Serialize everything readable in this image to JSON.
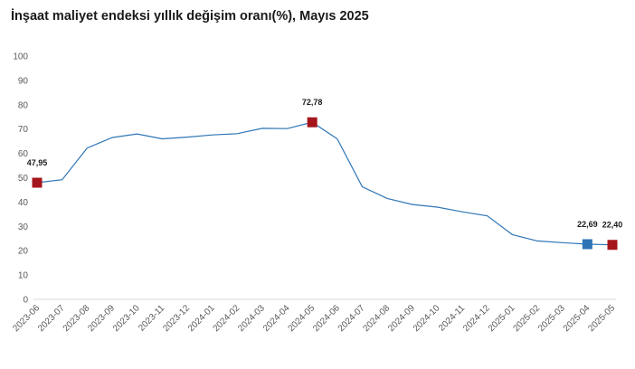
{
  "chart_data": {
    "type": "line",
    "title": "İnşaat maliyet endeksi yıllık değişim oranı(%), Mayıs 2025",
    "xlabel": "",
    "ylabel": "",
    "ylim": [
      0,
      100
    ],
    "yticks": [
      0,
      10,
      20,
      30,
      40,
      50,
      60,
      70,
      80,
      90,
      100
    ],
    "grid": false,
    "legend": "none",
    "categories": [
      "2023-06",
      "2023-07",
      "2023-08",
      "2023-09",
      "2023-10",
      "2023-11",
      "2023-12",
      "2024-01",
      "2024-02",
      "2024-03",
      "2024-04",
      "2024-05",
      "2024-06",
      "2024-07",
      "2024-08",
      "2024-09",
      "2024-10",
      "2024-11",
      "2024-12",
      "2025-01",
      "2025-02",
      "2025-03",
      "2025-04",
      "2025-05"
    ],
    "series": [
      {
        "values": [
          47.95,
          49.2,
          62.2,
          66.5,
          68.0,
          66.0,
          66.7,
          67.6,
          68.1,
          70.3,
          70.2,
          72.78,
          66.0,
          46.3,
          41.5,
          39.0,
          37.9,
          36.0,
          34.3,
          26.6,
          24.0,
          23.3,
          22.69,
          22.4
        ],
        "color": "#2e75b6"
      }
    ],
    "markers": [
      {
        "index": 0,
        "label": "47,95",
        "color": "#a5151c"
      },
      {
        "index": 11,
        "label": "72,78",
        "color": "#a5151c"
      },
      {
        "index": 22,
        "label": "22,69",
        "color": "#2e75b6"
      },
      {
        "index": 23,
        "label": "22,40",
        "color": "#a5151c"
      }
    ]
  }
}
